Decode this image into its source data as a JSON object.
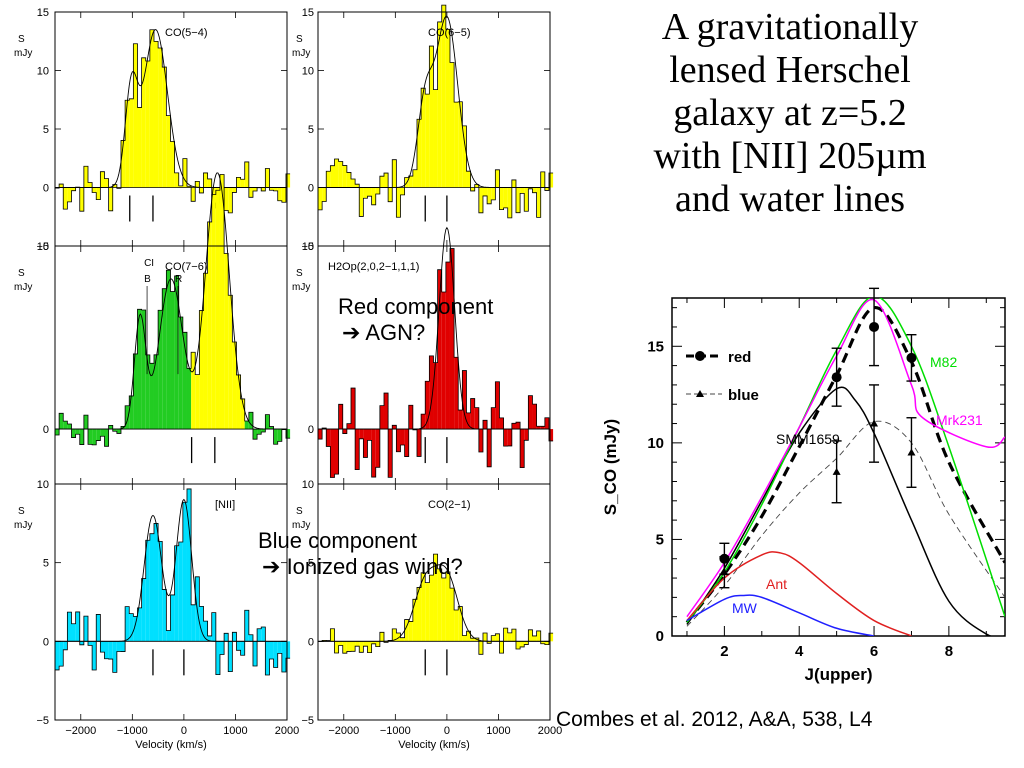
{
  "title_lines": [
    "A gravitationally",
    "lensed Herschel",
    "galaxy at z=5.2",
    "with [NII] 205µm",
    "and water lines"
  ],
  "callouts": {
    "red": {
      "line1": "Red component",
      "arrow": "➔",
      "line2": "AGN?"
    },
    "blue": {
      "line1": "Blue component",
      "arrow": "➔",
      "line2": "Ionized gas wind?"
    }
  },
  "citation": "Combes et al. 2012, A&A, 538, L4",
  "colors": {
    "yellow": "#ffff00",
    "green": "#22cc22",
    "red": "#e00000",
    "cyan": "#00e0ff",
    "m82": "#00dd00",
    "mrk231": "#ff00ff",
    "ant": "#e02020",
    "mw": "#2020ff"
  },
  "chart_data": [
    {
      "type": "line",
      "subtype": "spectra-grid",
      "xlabel": "Velocity (km/s)",
      "ylabel": "S mJy",
      "x_ticks": [
        "−2000",
        "−1000",
        "0",
        "1000",
        "2000"
      ],
      "xlim": [
        -2500,
        2000
      ],
      "rows": [
        {
          "ylim": [
            -5,
            15
          ],
          "y_ticks": [
            "−5",
            "0",
            "5",
            "10",
            "15"
          ]
        },
        {
          "ylim": [
            -3,
            10
          ],
          "y_ticks": [
            "0",
            "10"
          ]
        },
        {
          "ylim": [
            -5,
            10
          ],
          "y_ticks": [
            "−5",
            "0",
            "5",
            "10"
          ]
        }
      ],
      "panels": [
        {
          "label": "CO(5−4)",
          "row": 0,
          "col": 0,
          "markers": [
            -1050,
            -600
          ],
          "components": [
            {
              "center": -1020,
              "width": 120,
              "amp": 8,
              "fill": "yellow"
            },
            {
              "center": -550,
              "width": 230,
              "amp": 13.5,
              "fill": "yellow"
            }
          ],
          "noise": 2.4
        },
        {
          "label": "CO(6−5)",
          "row": 0,
          "col": 1,
          "markers": [
            -420,
            0
          ],
          "components": [
            {
              "center": -420,
              "width": 150,
              "amp": 7,
              "fill": "yellow"
            },
            {
              "center": 0,
              "width": 210,
              "amp": 14.5,
              "fill": "yellow"
            }
          ],
          "noise": 2.6
        },
        {
          "label": "CO(7−6)",
          "row": 1,
          "col": 0,
          "markers": [
            150,
            600
          ],
          "line_labels": [
            "CI",
            "B",
            "R"
          ],
          "components": [
            {
              "center": -850,
              "width": 110,
              "amp": 6,
              "fill": "green"
            },
            {
              "center": -250,
              "width": 230,
              "amp": 8.2,
              "fill": "green"
            },
            {
              "center": 650,
              "width": 230,
              "amp": 14,
              "fill": "yellow"
            }
          ],
          "noise": 1.0
        },
        {
          "label": "H2Op(2,0,2−1,1,1)",
          "row": 1,
          "col": 1,
          "markers": [
            -420,
            0
          ],
          "components": [
            {
              "center": 0,
              "width": 150,
              "amp": 11,
              "fill": "red"
            }
          ],
          "noise": 2.8
        },
        {
          "label": "[NII]",
          "row": 2,
          "col": 0,
          "markers": [
            -600,
            0
          ],
          "components": [
            {
              "center": -600,
              "width": 170,
              "amp": 8,
              "fill": "cyan"
            },
            {
              "center": 0,
              "width": 150,
              "amp": 9,
              "fill": "cyan"
            }
          ],
          "noise": 2.2
        },
        {
          "label": "CO(2−1)",
          "row": 2,
          "col": 1,
          "markers": [
            -420,
            0
          ],
          "components": [
            {
              "center": -420,
              "width": 220,
              "amp": 3.6,
              "fill": "yellow"
            },
            {
              "center": 0,
              "width": 220,
              "amp": 4,
              "fill": "yellow"
            }
          ],
          "noise": 0.9
        }
      ]
    },
    {
      "type": "line",
      "subtype": "co-sled",
      "xlabel": "J(upper)",
      "ylabel": "S_CO (mJy)",
      "xlim": [
        0.6,
        9.5
      ],
      "ylim": [
        0,
        17.5
      ],
      "x_ticks": [
        2,
        4,
        6,
        8
      ],
      "y_ticks": [
        0,
        5,
        10,
        15
      ],
      "legend": [
        {
          "name": "red",
          "style": "dashed-thick-circle"
        },
        {
          "name": "blue",
          "style": "dashed-thin-triangle"
        }
      ],
      "series": [
        {
          "name": "red",
          "style": "dashed-thick",
          "x": [
            1,
            2,
            3,
            4,
            5,
            6,
            7,
            8,
            9.5
          ],
          "y": [
            0.7,
            3.2,
            6.2,
            9.8,
            13.5,
            17.0,
            14.2,
            9.0,
            3.8
          ],
          "points": {
            "x": [
              2,
              5,
              6,
              7
            ],
            "y": [
              4.0,
              13.4,
              16.0,
              14.4
            ],
            "err": [
              0.8,
              1.5,
              2.0,
              1.2
            ],
            "marker": "circle"
          }
        },
        {
          "name": "blue",
          "style": "dashed-thin",
          "x": [
            1,
            2,
            3,
            4,
            5,
            6,
            7,
            8,
            9.5
          ],
          "y": [
            0.5,
            2.6,
            5.2,
            7.4,
            9.2,
            11.1,
            10.0,
            6.3,
            2.0
          ],
          "points": {
            "x": [
              2,
              5,
              6,
              7
            ],
            "y": [
              3.3,
              8.5,
              11.0,
              9.5
            ],
            "err": [
              0.8,
              1.6,
              2.0,
              1.8
            ],
            "marker": "triangle"
          }
        },
        {
          "name": "SMM1659",
          "color": "#000000",
          "x": [
            1,
            2,
            3,
            4,
            5,
            5.5,
            6,
            7,
            8,
            9,
            9.5
          ],
          "y": [
            0.6,
            3.5,
            7.0,
            10.5,
            12.8,
            12.2,
            10.5,
            6.0,
            1.8,
            0.1,
            0
          ]
        },
        {
          "name": "M82",
          "color": "m82",
          "x": [
            1,
            2,
            3,
            4,
            5,
            6,
            7,
            8,
            9.5
          ],
          "y": [
            0.7,
            3.3,
            6.8,
            10.8,
            14.8,
            17.6,
            15.0,
            9.8,
            1.0
          ]
        },
        {
          "name": "Mrk231",
          "color": "mrk231",
          "x": [
            1,
            2,
            3,
            4,
            5,
            6,
            7,
            7.3,
            9,
            9.5
          ],
          "y": [
            1.0,
            3.8,
            7.2,
            10.8,
            14.5,
            17.4,
            13.0,
            11.3,
            9.8,
            10.3
          ]
        },
        {
          "name": "Ant",
          "color": "ant",
          "x": [
            1,
            2,
            3,
            3.5,
            4,
            5,
            6,
            7
          ],
          "y": [
            0.8,
            3.0,
            4.2,
            4.3,
            3.8,
            2.2,
            0.8,
            0
          ]
        },
        {
          "name": "MW",
          "color": "mw",
          "x": [
            1,
            2,
            2.5,
            3,
            4,
            5,
            6
          ],
          "y": [
            0.8,
            1.9,
            2.1,
            2.0,
            1.2,
            0.4,
            0
          ]
        }
      ]
    }
  ]
}
